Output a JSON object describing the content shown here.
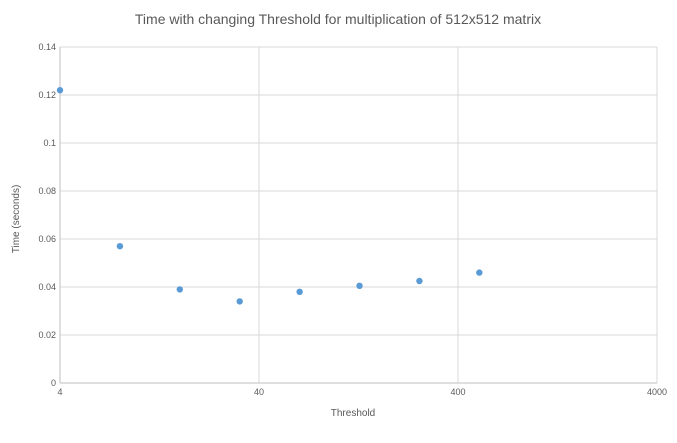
{
  "chart_data": {
    "type": "scatter",
    "title": "Time with changing Threshold for multiplication of  512x512 matrix",
    "xlabel": "Threshold",
    "ylabel": "Time (seconds)",
    "x_scale": "log10",
    "xlim": [
      4,
      4000
    ],
    "ylim": [
      0,
      0.14
    ],
    "x_ticks": [
      4,
      40,
      400,
      4000
    ],
    "x_tick_labels": [
      "4",
      "40",
      "400",
      "4000"
    ],
    "y_ticks": [
      0,
      0.02,
      0.04,
      0.06,
      0.08,
      0.1,
      0.12,
      0.14
    ],
    "y_tick_labels": [
      "0",
      "0.02",
      "0.04",
      "0.06",
      "0.08",
      "0.1",
      "0.12",
      "0.14"
    ],
    "grid": true,
    "legend": "none",
    "series": [
      {
        "color": "#5b9bd5",
        "points": [
          {
            "x": 4,
            "y": 0.122
          },
          {
            "x": 8,
            "y": 0.057
          },
          {
            "x": 16,
            "y": 0.039
          },
          {
            "x": 32,
            "y": 0.034
          },
          {
            "x": 64,
            "y": 0.038
          },
          {
            "x": 128,
            "y": 0.0405
          },
          {
            "x": 256,
            "y": 0.0425
          },
          {
            "x": 512,
            "y": 0.046
          }
        ]
      }
    ]
  }
}
